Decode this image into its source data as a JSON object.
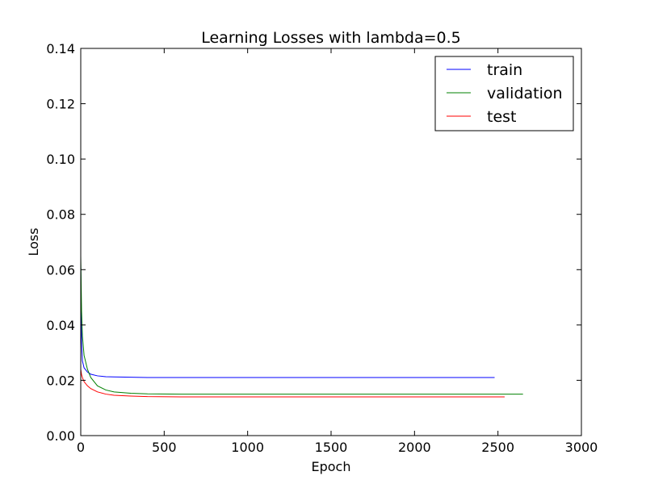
{
  "chart_data": {
    "type": "line",
    "title": "Learning Losses with lambda=0.5",
    "xlabel": "Epoch",
    "ylabel": "Loss",
    "xlim": [
      0,
      3000
    ],
    "ylim": [
      0,
      0.14
    ],
    "xticks": [
      0,
      500,
      1000,
      1500,
      2000,
      2500,
      3000
    ],
    "xtick_labels": [
      "0",
      "500",
      "1000",
      "1500",
      "2000",
      "2500",
      "3000"
    ],
    "yticks": [
      0,
      0.02,
      0.04,
      0.06,
      0.08,
      0.1,
      0.12,
      0.14
    ],
    "ytick_labels": [
      "0.00",
      "0.02",
      "0.04",
      "0.06",
      "0.08",
      "0.10",
      "0.12",
      "0.14"
    ],
    "grid": false,
    "legend": "top-right",
    "series": [
      {
        "name": "train",
        "color": "#0000ff",
        "x": [
          0,
          5,
          10,
          20,
          40,
          60,
          100,
          150,
          200,
          300,
          400,
          600,
          1000,
          1500,
          2000,
          2480
        ],
        "y": [
          0.062,
          0.034,
          0.027,
          0.0245,
          0.023,
          0.0222,
          0.0216,
          0.0213,
          0.0212,
          0.0211,
          0.021,
          0.021,
          0.021,
          0.021,
          0.021,
          0.021
        ]
      },
      {
        "name": "validation",
        "color": "#008000",
        "x": [
          0,
          5,
          10,
          20,
          40,
          60,
          100,
          150,
          200,
          300,
          400,
          600,
          1000,
          1500,
          2000,
          2650
        ],
        "y": [
          0.065,
          0.045,
          0.036,
          0.029,
          0.024,
          0.021,
          0.018,
          0.0165,
          0.0158,
          0.0153,
          0.0151,
          0.015,
          0.015,
          0.015,
          0.015,
          0.015
        ]
      },
      {
        "name": "test",
        "color": "#ff0000",
        "x": [
          0,
          5,
          10,
          20,
          40,
          60,
          100,
          150,
          200,
          300,
          400,
          600,
          1000,
          1500,
          2000,
          2540
        ],
        "y": [
          0.024,
          0.022,
          0.021,
          0.0195,
          0.018,
          0.017,
          0.0158,
          0.015,
          0.0146,
          0.0143,
          0.0141,
          0.014,
          0.014,
          0.014,
          0.014,
          0.014
        ]
      }
    ]
  }
}
